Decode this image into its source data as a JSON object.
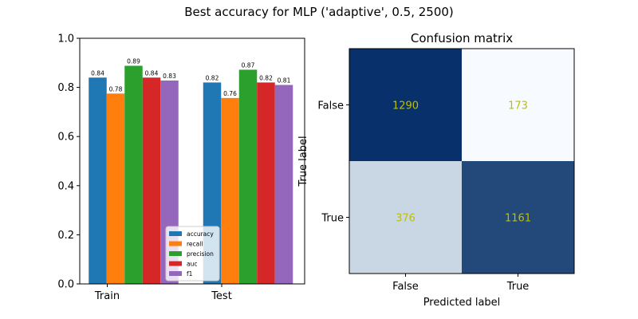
{
  "figure": {
    "suptitle": "Best accuracy for MLP ('adaptive', 0.5, 2500)"
  },
  "chart_data": [
    {
      "type": "bar",
      "title": "",
      "xlabel": "",
      "ylabel": "",
      "categories": [
        "Train",
        "Test"
      ],
      "ylim": [
        0,
        1.0
      ],
      "yticks": [
        "0.0",
        "0.2",
        "0.4",
        "0.6",
        "0.8",
        "1.0"
      ],
      "legend_position": "lower-right",
      "series": [
        {
          "name": "accuracy",
          "color": "#1f77b4",
          "values": [
            0.84,
            0.82
          ],
          "labels": [
            "0.84",
            "0.82"
          ]
        },
        {
          "name": "recall",
          "color": "#ff7f0e",
          "values": [
            0.775,
            0.757
          ],
          "labels": [
            "0.78",
            "0.76"
          ]
        },
        {
          "name": "precision",
          "color": "#2ca02c",
          "values": [
            0.888,
            0.872
          ],
          "labels": [
            "0.89",
            "0.87"
          ]
        },
        {
          "name": "auc",
          "color": "#d62728",
          "values": [
            0.84,
            0.82
          ],
          "labels": [
            "0.84",
            "0.82"
          ]
        },
        {
          "name": "f1",
          "color": "#9467bd",
          "values": [
            0.828,
            0.81
          ],
          "labels": [
            "0.83",
            "0.81"
          ]
        }
      ]
    },
    {
      "type": "heatmap",
      "title": "Confusion matrix",
      "xlabel": "Predicted label",
      "ylabel": "True label",
      "x_categories": [
        "False",
        "True"
      ],
      "y_categories": [
        "False",
        "True"
      ],
      "values": [
        [
          1290,
          173
        ],
        [
          376,
          1161
        ]
      ],
      "cell_colors": [
        [
          "#08306b",
          "#f7fbff"
        ],
        [
          "#c9d7e5",
          "#23497b"
        ]
      ],
      "text_color": "#bfbf00"
    }
  ]
}
